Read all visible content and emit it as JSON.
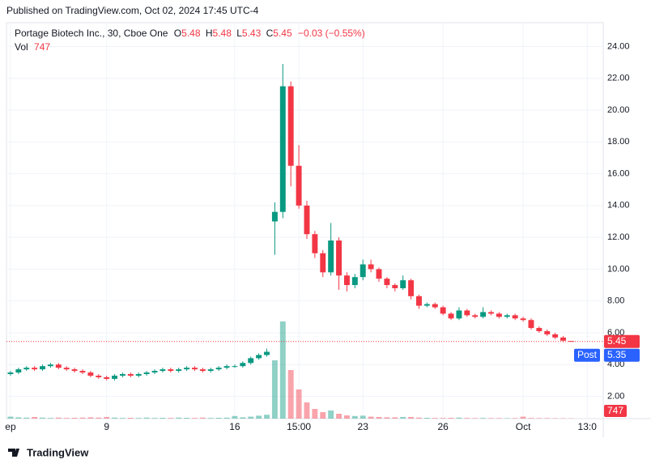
{
  "header": {
    "published": "Published on TradingView.com, Oct 02, 2024 17:45 UTC-4",
    "brand": "TradingView"
  },
  "chart_data": {
    "type": "candlestick",
    "title": "Portage Biotech Inc., 30, Cboe One",
    "legend_labels": {
      "open": "O",
      "high": "H",
      "low": "L",
      "close": "C",
      "volume": "Vol"
    },
    "change": "−0.03 (−0.55%)",
    "up_color": "#089981",
    "down_color": "#f23645",
    "open": [
      3.4,
      3.5,
      3.7,
      3.8,
      3.7,
      3.9,
      4.0,
      3.8,
      3.7,
      3.6,
      3.5,
      3.3,
      3.2,
      3.1,
      3.3,
      3.4,
      3.3,
      3.4,
      3.5,
      3.6,
      3.7,
      3.6,
      3.7,
      3.8,
      3.7,
      3.6,
      3.7,
      3.8,
      3.9,
      3.9,
      4.1,
      4.4,
      4.6,
      13.0,
      13.6,
      21.5,
      16.5,
      14.0,
      12.2,
      11.0,
      9.8,
      11.8,
      9.6,
      9.0,
      9.5,
      10.3,
      10.0,
      9.4,
      9.0,
      8.8,
      9.3,
      8.3,
      7.7,
      7.8,
      7.6,
      7.2,
      6.9,
      7.4,
      7.1,
      7.0,
      7.3,
      7.2,
      7.0,
      7.1,
      6.9,
      6.8,
      6.3,
      6.1,
      5.9,
      5.7,
      5.48
    ],
    "high": [
      3.6,
      3.8,
      3.9,
      3.9,
      4.0,
      4.1,
      4.1,
      3.9,
      3.8,
      3.7,
      3.6,
      3.4,
      3.3,
      3.4,
      3.5,
      3.5,
      3.5,
      3.6,
      3.7,
      3.8,
      3.8,
      3.8,
      3.9,
      3.9,
      3.8,
      3.8,
      3.9,
      4.0,
      4.0,
      4.2,
      4.5,
      4.7,
      5.0,
      14.2,
      22.9,
      21.8,
      17.8,
      14.3,
      12.4,
      11.2,
      12.9,
      12.0,
      9.8,
      9.7,
      10.6,
      10.6,
      10.1,
      9.5,
      9.1,
      9.6,
      9.4,
      8.4,
      7.9,
      7.9,
      7.7,
      7.3,
      7.6,
      7.5,
      7.2,
      7.6,
      7.4,
      7.3,
      7.2,
      7.2,
      7.0,
      6.9,
      6.4,
      6.2,
      6.0,
      5.8,
      5.48
    ],
    "low": [
      3.3,
      3.4,
      3.6,
      3.6,
      3.6,
      3.8,
      3.7,
      3.6,
      3.5,
      3.4,
      3.2,
      3.1,
      3.0,
      3.0,
      3.2,
      3.2,
      3.2,
      3.3,
      3.4,
      3.5,
      3.5,
      3.5,
      3.6,
      3.6,
      3.5,
      3.5,
      3.6,
      3.7,
      3.8,
      3.8,
      4.0,
      4.3,
      4.5,
      10.9,
      13.2,
      15.2,
      13.8,
      11.9,
      10.7,
      9.5,
      9.6,
      8.7,
      8.6,
      8.8,
      9.3,
      9.8,
      9.2,
      8.8,
      8.6,
      8.7,
      8.1,
      7.5,
      7.6,
      7.5,
      7.1,
      6.8,
      6.8,
      7.0,
      6.9,
      6.9,
      7.1,
      6.9,
      6.9,
      6.8,
      6.7,
      6.2,
      6.0,
      5.8,
      5.6,
      5.4,
      5.43
    ],
    "close": [
      3.5,
      3.7,
      3.8,
      3.7,
      3.9,
      4.0,
      3.8,
      3.7,
      3.6,
      3.5,
      3.3,
      3.2,
      3.1,
      3.3,
      3.4,
      3.3,
      3.4,
      3.5,
      3.6,
      3.7,
      3.6,
      3.7,
      3.8,
      3.7,
      3.6,
      3.7,
      3.8,
      3.9,
      3.9,
      4.1,
      4.4,
      4.6,
      4.8,
      13.6,
      21.5,
      16.5,
      14.0,
      12.2,
      11.0,
      9.8,
      11.8,
      9.6,
      9.0,
      9.5,
      10.3,
      10.0,
      9.4,
      9.0,
      8.8,
      9.3,
      8.3,
      7.7,
      7.8,
      7.6,
      7.2,
      6.9,
      7.4,
      7.1,
      7.0,
      7.3,
      7.2,
      7.0,
      7.1,
      6.9,
      6.8,
      6.3,
      6.1,
      5.9,
      5.7,
      5.5,
      5.45
    ],
    "volume": [
      6000,
      4000,
      3000,
      5000,
      3000,
      2000,
      3000,
      2000,
      2500,
      3000,
      4000,
      3000,
      5000,
      3000,
      2000,
      2500,
      2000,
      3000,
      2000,
      2500,
      2000,
      3000,
      2500,
      2000,
      3000,
      2000,
      2500,
      3000,
      8000,
      4000,
      6000,
      9000,
      12000,
      180000,
      300000,
      150000,
      90000,
      50000,
      30000,
      20000,
      25000,
      15000,
      10000,
      8000,
      9000,
      6000,
      5000,
      4000,
      4000,
      5000,
      5000,
      3000,
      2500,
      2000,
      2000,
      2500,
      3000,
      2000,
      1500,
      2000,
      1500,
      1500,
      1200,
      1500,
      6000,
      2000,
      1500,
      1500,
      1200,
      1000,
      747
    ],
    "post_label": "Post",
    "post_price": 5.35,
    "xlim": [
      -0.5,
      74
    ],
    "xticks": [
      {
        "value": 0,
        "label": "ep"
      },
      {
        "value": 12,
        "label": "9"
      },
      {
        "value": 28,
        "label": "16"
      },
      {
        "value": 36,
        "label": "15:00"
      },
      {
        "value": 44,
        "label": "23"
      },
      {
        "value": 54,
        "label": "26"
      },
      {
        "value": 64,
        "label": "Oct"
      },
      {
        "value": 72,
        "label": "13:0"
      }
    ],
    "ylim": [
      0.6,
      25.5
    ],
    "yticks": [
      {
        "value": 2,
        "label": "2.00"
      },
      {
        "value": 4,
        "label": "4.00"
      },
      {
        "value": 6,
        "label": "6.00"
      },
      {
        "value": 8,
        "label": "8.00"
      },
      {
        "value": 10,
        "label": "10.00"
      },
      {
        "value": 12,
        "label": "12.00"
      },
      {
        "value": 14,
        "label": "14.00"
      },
      {
        "value": 16,
        "label": "16.00"
      },
      {
        "value": 18,
        "label": "18.00"
      },
      {
        "value": 20,
        "label": "20.00"
      },
      {
        "value": 22,
        "label": "22.00"
      },
      {
        "value": 24,
        "label": "24.00"
      }
    ],
    "grid": true
  }
}
